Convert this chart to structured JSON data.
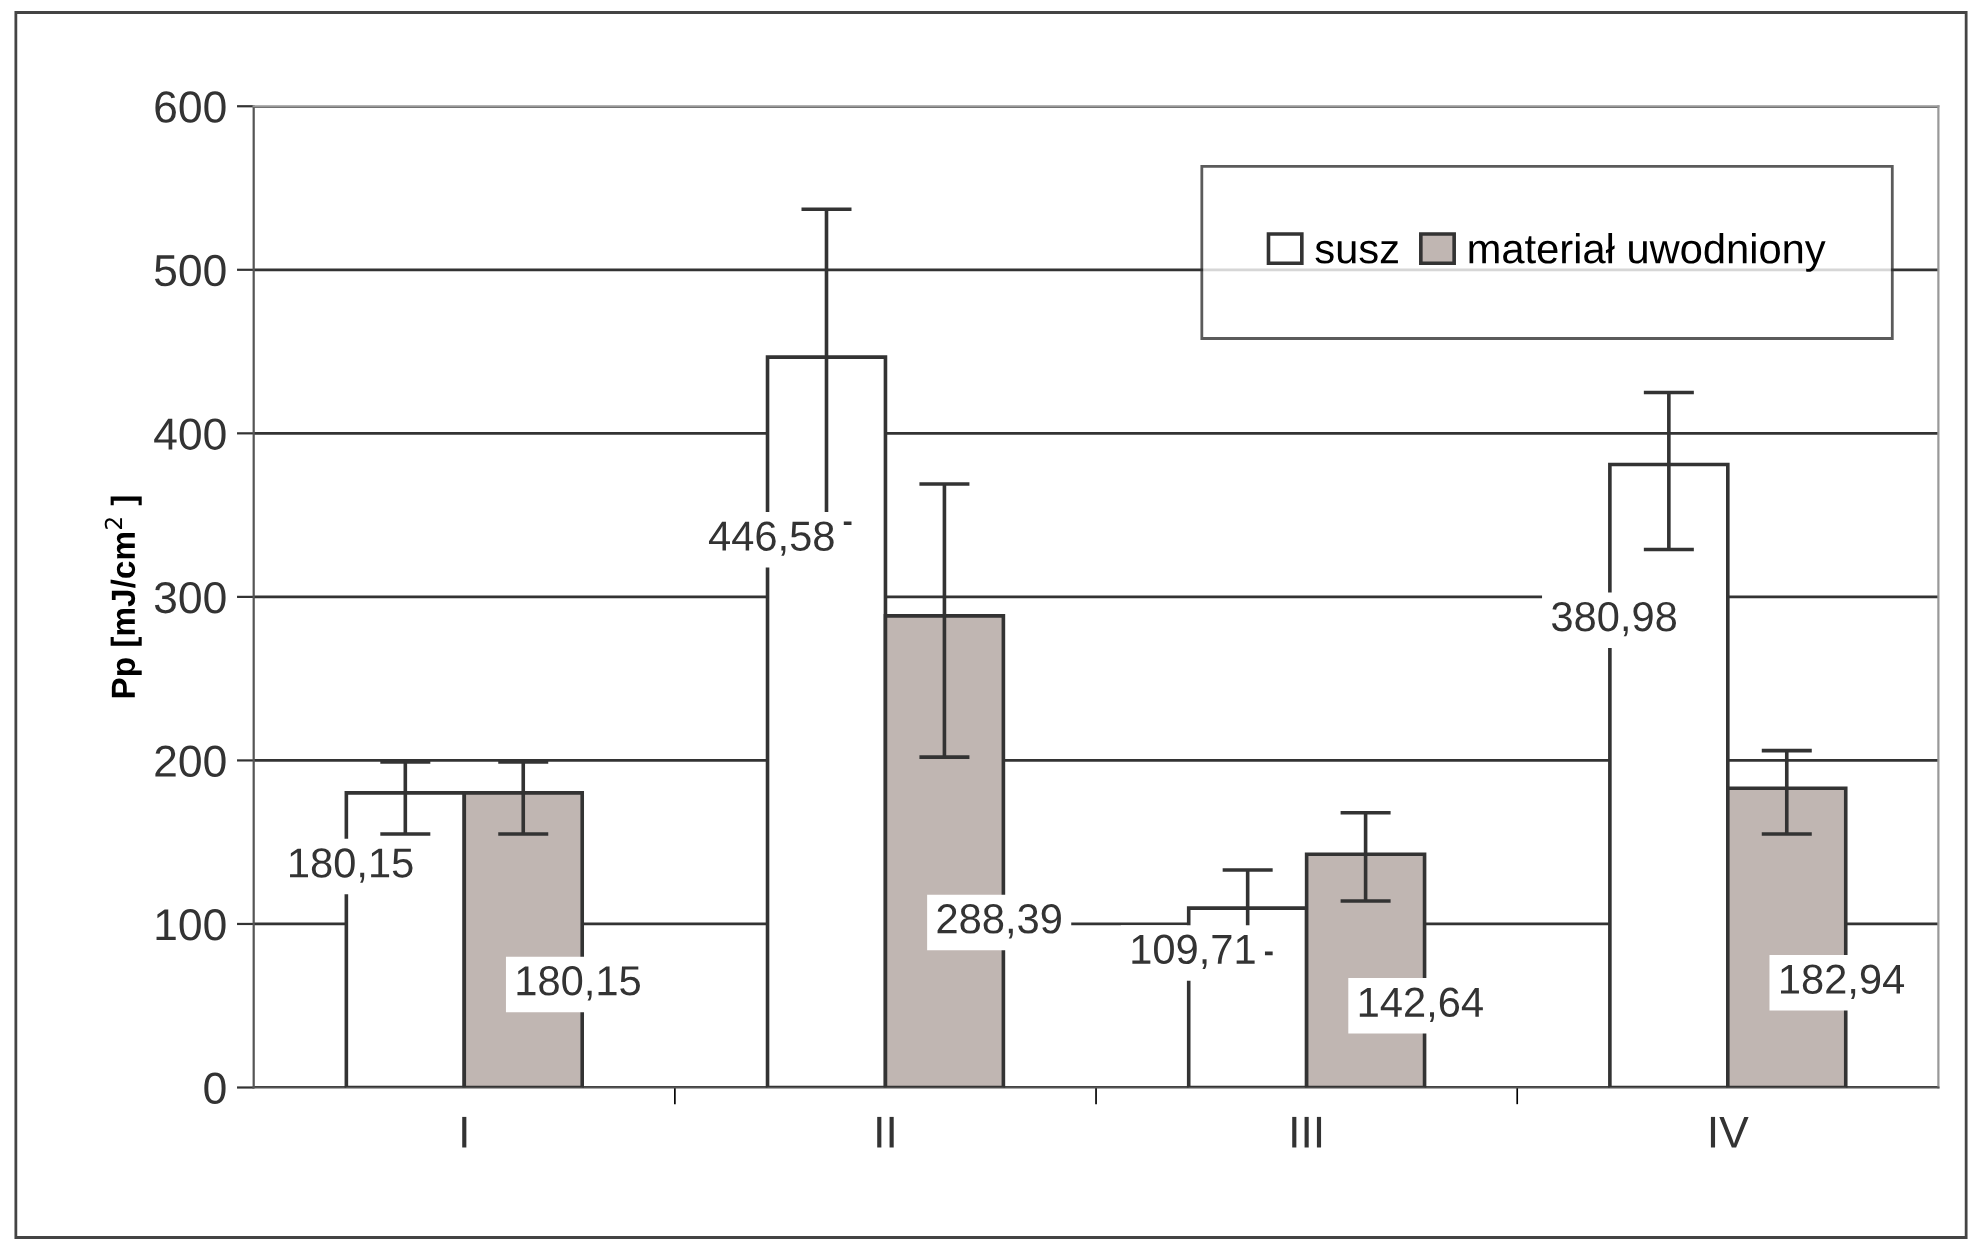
{
  "chart_data": {
    "type": "bar",
    "ylabel": "Pp [mJ/cm$^{2}$ ]",
    "categories": [
      "I",
      "II",
      "III",
      "IV"
    ],
    "series": [
      {
        "name": "susz",
        "color": "#ffffff",
        "values": [
          180.15,
          446.58,
          109.71,
          380.98
        ],
        "errors": [
          [
            155,
            199
          ],
          [
            345,
            537
          ],
          [
            82,
            133
          ],
          [
            329,
            425
          ]
        ],
        "value_labels": [
          "180,15",
          "446,58",
          "109,71",
          "380,98"
        ]
      },
      {
        "name": "materiał uwodniony",
        "color": "#c0b6b2",
        "values": [
          180.15,
          288.39,
          142.64,
          182.94
        ],
        "errors": [
          [
            155,
            199
          ],
          [
            202,
            369
          ],
          [
            114,
            168
          ],
          [
            155,
            206
          ]
        ],
        "value_labels": [
          "180,15",
          "288,39",
          "142,64",
          "182,94"
        ]
      }
    ],
    "ylim": [
      0,
      600
    ],
    "yticks": [
      0,
      100,
      200,
      300,
      400,
      500,
      600
    ],
    "grid": "y",
    "legend": "top right"
  }
}
